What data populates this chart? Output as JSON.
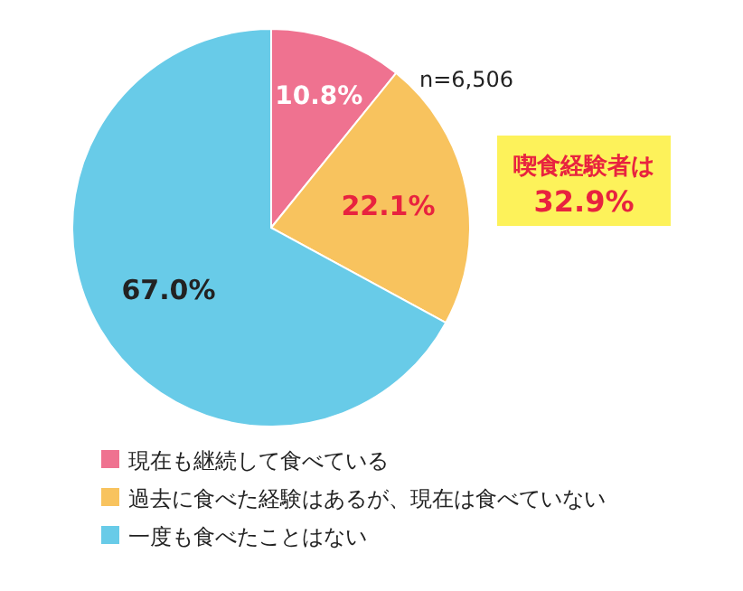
{
  "chart_data": {
    "type": "pie",
    "categories": [
      "現在も継続して食べている",
      "過去に食べた経験はあるが、現在は食べていない",
      "一度も食べたことはない"
    ],
    "values": [
      10.8,
      22.1,
      67.0
    ],
    "colors": [
      "#ef7290",
      "#f8c35e",
      "#68cbe8"
    ],
    "value_labels": [
      "10.8%",
      "22.1%",
      "67.0%"
    ],
    "legend": "bottom",
    "annotations": [
      "n=6,506",
      "喫食経験者は\n32.9%"
    ]
  }
}
